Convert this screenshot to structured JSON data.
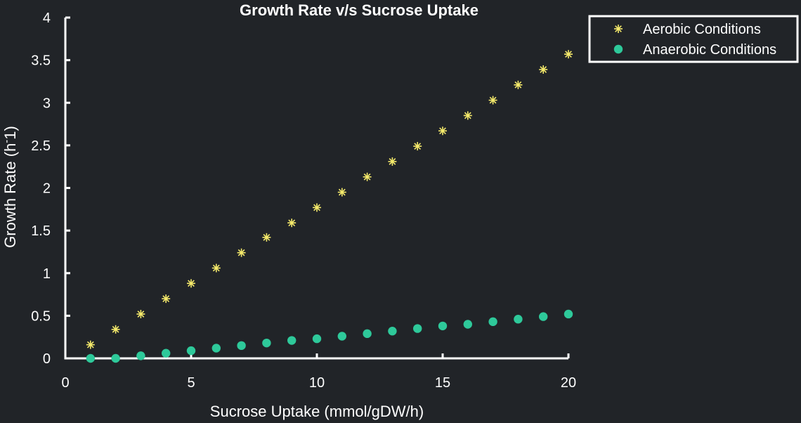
{
  "chart_data": {
    "type": "scatter",
    "title": "Growth Rate v/s Sucrose Uptake",
    "xlabel": "Sucrose Uptake (mmol/gDW/h)",
    "ylabel_main": "Growth Rate (h",
    "ylabel_sup": "-",
    "ylabel_end": "1)",
    "xlim": [
      0,
      20
    ],
    "ylim": [
      0,
      4
    ],
    "xticks": [
      0,
      5,
      10,
      15,
      20
    ],
    "xtick_labels": [
      "0",
      "5",
      "10",
      "15",
      "20"
    ],
    "yticks": [
      0,
      0.5,
      1,
      1.5,
      2,
      2.5,
      3,
      3.5,
      4
    ],
    "ytick_labels": [
      "0",
      "0.5",
      "1",
      "1.5",
      "2",
      "2.5",
      "3",
      "3.5",
      "4"
    ],
    "grid": false,
    "legend_position": "top-right",
    "x": [
      1,
      2,
      3,
      4,
      5,
      6,
      7,
      8,
      9,
      10,
      11,
      12,
      13,
      14,
      15,
      16,
      17,
      18,
      19,
      20
    ],
    "series": [
      {
        "name": "Aerobic Conditions",
        "marker": "asterisk",
        "color": "#f5ea6b",
        "values": [
          0.16,
          0.34,
          0.52,
          0.7,
          0.88,
          1.06,
          1.24,
          1.42,
          1.59,
          1.77,
          1.95,
          2.13,
          2.31,
          2.49,
          2.67,
          2.85,
          3.03,
          3.21,
          3.39,
          3.57
        ]
      },
      {
        "name": "Anaerobic Conditions",
        "marker": "circle",
        "color": "#2ec99a",
        "values": [
          0.0,
          0.0,
          0.03,
          0.06,
          0.09,
          0.12,
          0.15,
          0.18,
          0.21,
          0.23,
          0.26,
          0.29,
          0.32,
          0.35,
          0.38,
          0.4,
          0.43,
          0.46,
          0.49,
          0.52
        ]
      }
    ]
  }
}
